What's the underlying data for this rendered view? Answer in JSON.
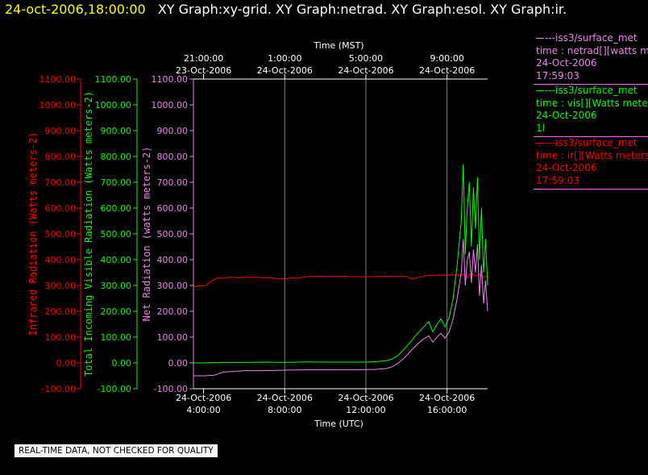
{
  "header": {
    "timestamp": "24-oct-2006,18:00:00",
    "graphs": "XY Graph:xy-grid.  XY Graph:netrad.  XY Graph:esol.  XY Graph:ir."
  },
  "notice": "REAL-TIME DATA, NOT CHECKED FOR QUALITY",
  "colors": {
    "background": "#000000",
    "header_timestamp": "#ffff00",
    "text": "#ffffff",
    "ir": "#ff0000",
    "vis": "#00ff00",
    "netrad": "#ee82ee",
    "grid": "#808080"
  },
  "legend": [
    {
      "line1": "---iss3/surface_met",
      "line2": "time : netrad[][watts met",
      "line3": "24-Oct-2006",
      "line4": "17:59:03",
      "color": "#ee82ee"
    },
    {
      "line1": "---iss3/surface_met",
      "line2": "time : vis[][Watts meters",
      "line3": "24-Oct-2006",
      "line4": "1l",
      "color": "#00ff00"
    },
    {
      "line1": "---iss3/surface_met",
      "line2": "time : ir[][Watts meters",
      "line3": "24-Oct-2006",
      "line4": "17:59:03",
      "color": "#ff0000"
    }
  ],
  "chart_data": {
    "type": "line",
    "x_unit": "hours UTC on 24-Oct-2006",
    "xlim": [
      3.5,
      18.0
    ],
    "x_bottom_title": "Time (UTC)",
    "x_bottom_ticks": [
      {
        "value": 4,
        "date": "24-Oct-2006",
        "time": "4:00:00"
      },
      {
        "value": 8,
        "date": "24-Oct-2006",
        "time": "8:00:00"
      },
      {
        "value": 12,
        "date": "24-Oct-2006",
        "time": "12:00:00"
      },
      {
        "value": 16,
        "date": "24-Oct-2006",
        "time": "16:00:00"
      }
    ],
    "x_top_title": "Time (MST)",
    "x_top_ticks": [
      {
        "value": 4,
        "time": "21:00:00",
        "date": "23-Oct-2006"
      },
      {
        "value": 8,
        "time": "1:00:00",
        "date": "24-Oct-2006"
      },
      {
        "value": 12,
        "time": "5:00:00",
        "date": "24-Oct-2006"
      },
      {
        "value": 16,
        "time": "9:00:00",
        "date": "24-Oct-2006"
      }
    ],
    "ylim": [
      -100,
      1100
    ],
    "y_ticks": [
      -100,
      0,
      100,
      200,
      300,
      400,
      500,
      600,
      700,
      800,
      900,
      1000,
      1100
    ],
    "y_axes": [
      {
        "name": "Infrared Radiation (Watts meters-2)",
        "color": "#ff0000"
      },
      {
        "name": "Total Incoming Visible Radiation (Watts meters-2)",
        "color": "#00ff00"
      },
      {
        "name": "Net Radiation (watts meters-2)",
        "color": "#ee82ee"
      }
    ],
    "vertical_gridlines": [
      8,
      12,
      16
    ],
    "series": [
      {
        "name": "ir",
        "color": "#ff0000",
        "x": [
          3.5,
          3.8,
          4.1,
          4.4,
          4.7,
          5.0,
          5.3,
          5.6,
          6.0,
          6.5,
          7.0,
          7.5,
          8.0,
          8.3,
          8.6,
          9.0,
          9.5,
          10.0,
          10.5,
          11.0,
          11.5,
          12.0,
          12.5,
          13.0,
          13.5,
          14.0,
          14.3,
          14.6,
          15.0,
          15.5,
          16.0,
          16.3,
          16.6,
          16.8,
          17.0,
          17.2,
          17.4,
          17.6,
          17.8,
          18.0
        ],
        "y": [
          295,
          298,
          300,
          318,
          330,
          328,
          332,
          330,
          331,
          332,
          330,
          328,
          325,
          330,
          328,
          333,
          336,
          335,
          336,
          335,
          333,
          334,
          334,
          336,
          335,
          335,
          325,
          332,
          338,
          340,
          340,
          342,
          338,
          345,
          330,
          348,
          335,
          345,
          330,
          340
        ]
      },
      {
        "name": "vis",
        "color": "#00ff00",
        "x": [
          3.5,
          4.0,
          5.0,
          6.0,
          7.0,
          8.0,
          9.0,
          10.0,
          11.0,
          12.0,
          12.5,
          13.0,
          13.3,
          13.6,
          13.9,
          14.2,
          14.5,
          14.8,
          15.1,
          15.3,
          15.5,
          15.7,
          15.9,
          16.1,
          16.3,
          16.5,
          16.7,
          16.8,
          16.9,
          17.0,
          17.1,
          17.2,
          17.3,
          17.4,
          17.5,
          17.6,
          17.7,
          17.8,
          17.9,
          18.0
        ],
        "y": [
          0,
          0,
          2,
          2,
          3,
          2,
          4,
          3,
          3,
          3,
          5,
          8,
          15,
          30,
          55,
          80,
          110,
          135,
          160,
          120,
          150,
          170,
          140,
          175,
          250,
          380,
          550,
          770,
          420,
          600,
          700,
          450,
          680,
          520,
          720,
          400,
          600,
          350,
          480,
          300
        ]
      },
      {
        "name": "netrad",
        "color": "#ee82ee",
        "x": [
          3.5,
          4.0,
          4.5,
          5.0,
          5.5,
          6.0,
          7.0,
          8.0,
          9.0,
          10.0,
          11.0,
          12.0,
          12.5,
          13.0,
          13.3,
          13.6,
          13.9,
          14.2,
          14.5,
          14.8,
          15.1,
          15.3,
          15.5,
          15.7,
          15.9,
          16.1,
          16.3,
          16.5,
          16.7,
          16.8,
          16.9,
          17.0,
          17.1,
          17.2,
          17.3,
          17.4,
          17.5,
          17.6,
          17.7,
          17.8,
          17.9,
          18.0
        ],
        "y": [
          -50,
          -50,
          -48,
          -35,
          -33,
          -30,
          -30,
          -28,
          -27,
          -27,
          -27,
          -26,
          -25,
          -22,
          -15,
          0,
          20,
          45,
          70,
          90,
          105,
          80,
          100,
          115,
          95,
          120,
          170,
          250,
          350,
          480,
          300,
          400,
          430,
          310,
          440,
          350,
          460,
          260,
          380,
          230,
          320,
          200
        ]
      }
    ]
  }
}
